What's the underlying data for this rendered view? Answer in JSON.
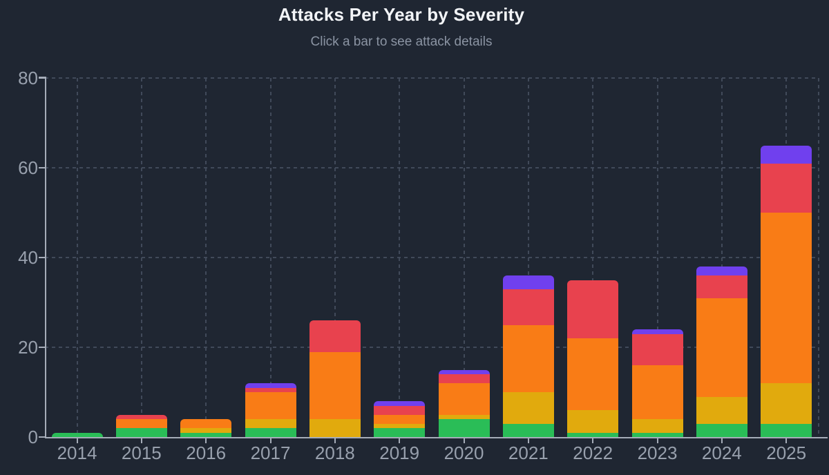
{
  "header": {
    "title": "Attacks Per Year by Severity",
    "subtitle": "Click a bar to see attack details"
  },
  "colors": {
    "background": "#1f2632",
    "title_text": "#f2f4f7",
    "subtitle_text": "#8b94a3",
    "axis_label": "#98a0ad",
    "axis_line": "#a6adb9",
    "gridline": "#414a5a",
    "severity_green": "#2abd57",
    "severity_yellow": "#e1aa0d",
    "severity_orange": "#f97c16",
    "severity_red": "#e8424e",
    "severity_purple": "#7040ee"
  },
  "chart_data": {
    "type": "bar",
    "stacked": true,
    "title": "Attacks Per Year by Severity",
    "subtitle": "Click a bar to see attack details",
    "categories": [
      "2014",
      "2015",
      "2016",
      "2017",
      "2018",
      "2019",
      "2020",
      "2021",
      "2022",
      "2023",
      "2024",
      "2025"
    ],
    "series": [
      {
        "name": "green",
        "color": "#2abd57",
        "values": [
          1,
          2,
          1,
          2,
          0,
          2,
          4,
          3,
          1,
          1,
          3,
          3
        ]
      },
      {
        "name": "yellow",
        "color": "#e1aa0d",
        "values": [
          0,
          0,
          1,
          2,
          4,
          1,
          1,
          7,
          5,
          3,
          6,
          9
        ]
      },
      {
        "name": "orange",
        "color": "#f97c16",
        "values": [
          0,
          2,
          2,
          6,
          15,
          2,
          7,
          15,
          16,
          12,
          22,
          38
        ]
      },
      {
        "name": "red",
        "color": "#e8424e",
        "values": [
          0,
          1,
          0,
          1,
          7,
          2,
          2,
          8,
          13,
          7,
          5,
          11
        ]
      },
      {
        "name": "purple",
        "color": "#7040ee",
        "values": [
          0,
          0,
          0,
          1,
          0,
          1,
          1,
          3,
          0,
          1,
          2,
          4
        ]
      }
    ],
    "totals": [
      1,
      5,
      4,
      12,
      26,
      8,
      15,
      36,
      35,
      24,
      38,
      65
    ],
    "xlabel": "",
    "ylabel": "",
    "ylim": [
      0,
      80
    ],
    "yticks": [
      0,
      20,
      40,
      60,
      80
    ],
    "grid": "dashed horizontal at yticks and dashed vertical at each category center",
    "legend": "none"
  }
}
